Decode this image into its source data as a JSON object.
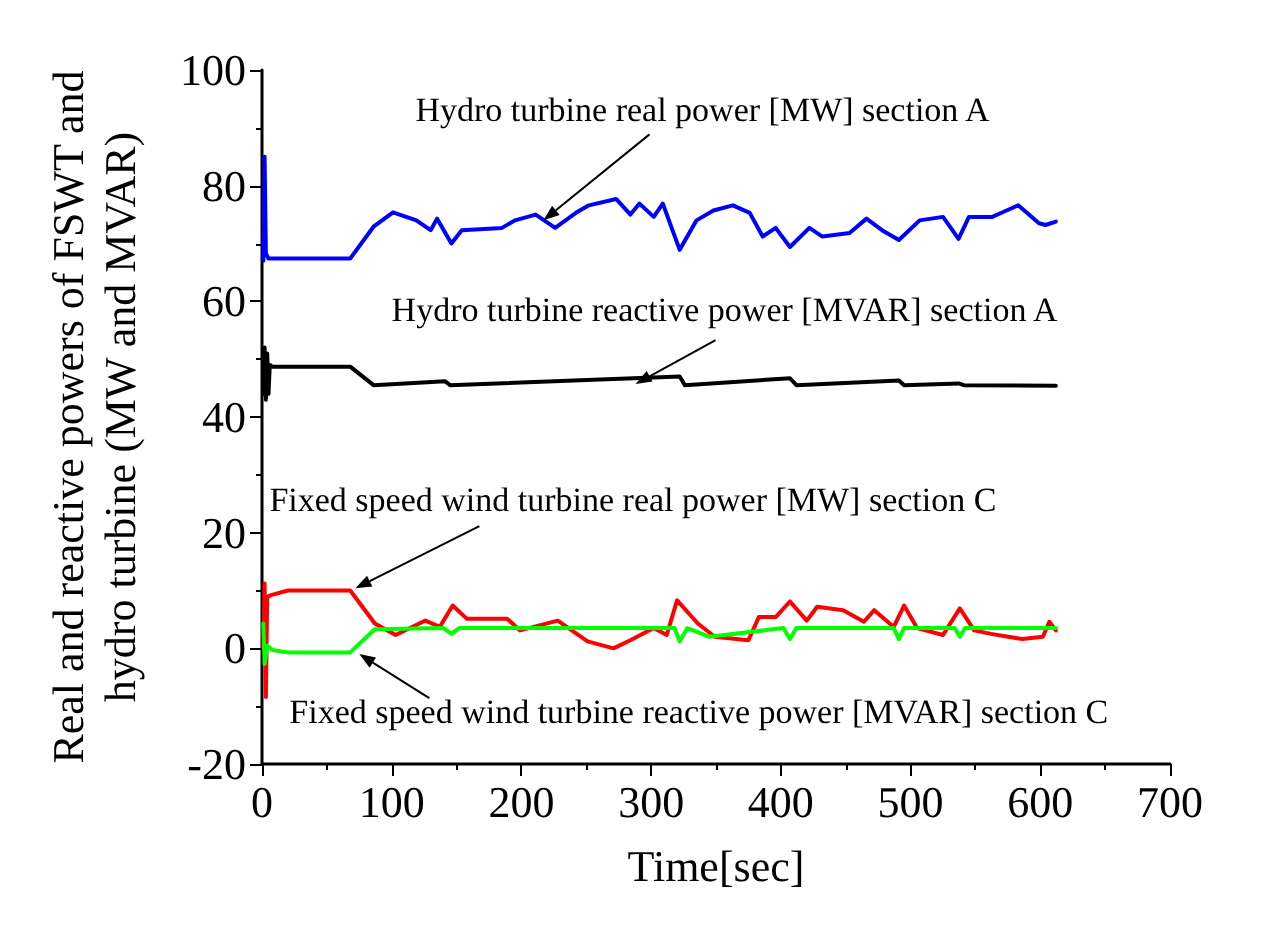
{
  "chart_data": {
    "type": "line",
    "xlabel": "Time[sec]",
    "ylabel": "Real and reactive powers of FSWT and\nhydro turbine (MW and MVAR)",
    "xlim": [
      0,
      700
    ],
    "xticks": [
      0,
      100,
      200,
      300,
      400,
      500,
      600,
      700
    ],
    "ylim": [
      -20,
      100
    ],
    "yticks": [
      -20,
      0,
      20,
      40,
      60,
      80,
      100
    ],
    "grid": false,
    "marker": "none",
    "line_style": "solid",
    "series": [
      {
        "color": "#0000ff",
        "x": [
          1,
          2,
          3,
          5,
          68,
          86,
          101,
          119,
          130,
          135,
          146,
          154,
          185,
          195,
          211,
          226,
          242,
          252,
          273,
          284,
          291,
          302,
          309,
          322,
          335,
          348,
          363,
          376,
          386,
          396,
          407,
          422,
          432,
          453,
          466,
          478,
          491,
          507,
          525,
          537,
          545,
          563,
          571,
          583,
          599,
          604,
          612
        ],
        "values": [
          67,
          85,
          68.3,
          67.4,
          67.4,
          72.9,
          75.4,
          74,
          72.3,
          74.3,
          70,
          72.3,
          72.7,
          74,
          75,
          72.7,
          75.3,
          76.6,
          77.7,
          75,
          76.9,
          74.6,
          76.9,
          68.9,
          74,
          75.7,
          76.6,
          75.3,
          71.2,
          72.7,
          69.4,
          72.7,
          71.2,
          71.8,
          74.3,
          72.3,
          70.6,
          74,
          74.6,
          70.8,
          74.6,
          74.6,
          75.4,
          76.6,
          73.5,
          73.2,
          73.8
        ]
      },
      {
        "color": "#000000",
        "x": [
          1,
          2,
          3,
          4,
          5,
          6,
          8,
          68,
          86,
          141,
          145,
          322,
          326,
          407,
          412,
          491,
          495,
          537,
          541,
          612
        ],
        "values": [
          44,
          52,
          43,
          51,
          44,
          49,
          48.7,
          48.7,
          45.5,
          46.2,
          45.5,
          47,
          45.5,
          46.7,
          45.5,
          46.3,
          45.5,
          45.8,
          45.5,
          45.4
        ]
      },
      {
        "color": "#ff0000",
        "x": [
          1,
          2,
          3,
          4,
          7,
          20,
          68,
          87,
          103,
          126,
          137,
          147,
          158,
          189,
          199,
          228,
          251,
          271,
          284,
          302,
          312,
          320,
          336,
          349,
          375,
          383,
          396,
          407,
          420,
          428,
          448,
          464,
          472,
          487,
          495,
          505,
          525,
          538,
          549,
          562,
          586,
          602,
          607,
          612
        ],
        "values": [
          0,
          11.2,
          -8.4,
          8.9,
          9.2,
          10,
          10,
          4.3,
          2.3,
          4.8,
          3.7,
          7.4,
          5.1,
          5.1,
          3.1,
          4.8,
          1.2,
          0,
          1.4,
          3.5,
          2.3,
          8.3,
          4.3,
          2,
          1.4,
          5.4,
          5.4,
          8.1,
          4.8,
          7.2,
          6.6,
          4.6,
          6.6,
          3.7,
          7.4,
          3.5,
          2.3,
          6.9,
          3.1,
          2.5,
          1.6,
          2,
          4.6,
          3.1
        ]
      },
      {
        "color": "#00ff00",
        "x": [
          1,
          2,
          4,
          8,
          20,
          68,
          87,
          140,
          146,
          152,
          318,
          322,
          328,
          345,
          402,
          407,
          412,
          487,
          491,
          495,
          534,
          538,
          542,
          612
        ],
        "values": [
          4.3,
          -2.7,
          0.5,
          -0.3,
          -0.7,
          -0.7,
          3.3,
          3.5,
          2.5,
          3.5,
          3.5,
          1.2,
          3.5,
          2,
          3.5,
          1.6,
          3.5,
          3.5,
          1.6,
          3.5,
          3.5,
          2,
          3.5,
          3.5
        ]
      }
    ],
    "annotations": [
      {
        "text": "Hydro turbine real power [MW] section A",
        "x": 217,
        "y": 74
      },
      {
        "text": "Hydro turbine reactive power [MVAR] section A",
        "x": 288,
        "y": 45.7
      },
      {
        "text": "Fixed speed wind turbine real power [MW] section C",
        "x": 72,
        "y": 10.4
      },
      {
        "text": "Fixed speed wind turbine reactive power [MVAR] section C",
        "x": 75,
        "y": -1
      }
    ]
  }
}
